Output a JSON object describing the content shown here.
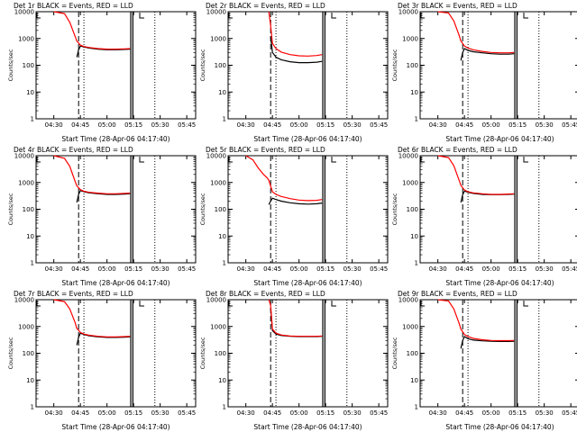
{
  "colors": {
    "events": "#000000",
    "lld": "#ff0000",
    "background": "#ffffff"
  },
  "chart_data": [
    {
      "type": "line",
      "title": "Det 1r BLACK = Events, RED = LLD",
      "xlabel": "Start Time (28-Apr-06 04:17:40)",
      "ylabel": "Counts/sec",
      "xticks": [
        "04:30",
        "04:45",
        "05:00",
        "05:15",
        "05:30",
        "05:45"
      ],
      "yticks": [
        "1",
        "10",
        "100",
        "1000",
        "10000"
      ],
      "yscale": "log",
      "ylim": [
        1,
        10000
      ],
      "series": [
        {
          "name": "Events",
          "x": [
            "04:43",
            "04:44",
            "04:45",
            "04:47",
            "04:50",
            "04:55",
            "05:00",
            "05:05",
            "05:10",
            "05:13"
          ],
          "values": [
            200,
            380,
            520,
            480,
            440,
            400,
            380,
            380,
            390,
            400
          ]
        },
        {
          "name": "LLD",
          "x": [
            "04:30",
            "04:36",
            "04:39",
            "04:42",
            "04:43",
            "04:45",
            "04:47",
            "04:50",
            "04:55",
            "05:00",
            "05:05",
            "05:10",
            "05:13"
          ],
          "values": [
            10000,
            8500,
            4000,
            1200,
            800,
            560,
            500,
            460,
            420,
            400,
            400,
            410,
            420
          ]
        }
      ]
    },
    {
      "type": "line",
      "title": "Det 2r BLACK = Events, RED = LLD",
      "xlabel": "Start Time (28-Apr-06 04:17:40)",
      "ylabel": "Counts/sec",
      "xticks": [
        "04:30",
        "04:45",
        "05:00",
        "05:15",
        "05:30",
        "05:45"
      ],
      "yticks": [
        "1",
        "10",
        "100",
        "1000",
        "10000"
      ],
      "yscale": "log",
      "ylim": [
        1,
        10000
      ],
      "series": [
        {
          "name": "Events",
          "x": [
            "04:44",
            "04:45",
            "04:47",
            "04:50",
            "04:55",
            "05:00",
            "05:05",
            "05:10",
            "05:13"
          ],
          "values": [
            1200,
            300,
            200,
            160,
            135,
            125,
            125,
            130,
            140
          ]
        },
        {
          "name": "LLD",
          "x": [
            "04:43",
            "04:44",
            "04:45",
            "04:47",
            "04:50",
            "04:55",
            "05:00",
            "05:05",
            "05:10",
            "05:13"
          ],
          "values": [
            10000,
            3000,
            650,
            420,
            310,
            250,
            225,
            220,
            230,
            250
          ]
        }
      ]
    },
    {
      "type": "line",
      "title": "Det 3r BLACK = Events, RED = LLD",
      "xlabel": "Start Time (28-Apr-06 04:17:40)",
      "ylabel": "Counts/sec",
      "xticks": [
        "04:30",
        "04:45",
        "05:00",
        "05:15",
        "05:30",
        "05:45"
      ],
      "yticks": [
        "1",
        "10",
        "100",
        "1000",
        "10000"
      ],
      "yscale": "log",
      "ylim": [
        1,
        10000
      ],
      "series": [
        {
          "name": "Events",
          "x": [
            "04:43",
            "04:44",
            "04:45",
            "04:47",
            "04:50",
            "04:55",
            "05:00",
            "05:05",
            "05:10",
            "05:13"
          ],
          "values": [
            150,
            300,
            420,
            360,
            320,
            290,
            270,
            260,
            260,
            270
          ]
        },
        {
          "name": "LLD",
          "x": [
            "04:30",
            "04:36",
            "04:39",
            "04:42",
            "04:43",
            "04:45",
            "04:47",
            "04:50",
            "04:55",
            "05:00",
            "05:05",
            "05:10",
            "05:13"
          ],
          "values": [
            10000,
            9000,
            4500,
            1300,
            800,
            520,
            440,
            380,
            330,
            300,
            290,
            290,
            300
          ]
        }
      ]
    },
    {
      "type": "line",
      "title": "Det 4r BLACK = Events, RED = LLD",
      "xlabel": "Start Time (28-Apr-06 04:17:40)",
      "ylabel": "Counts/sec",
      "xticks": [
        "04:30",
        "04:45",
        "05:00",
        "05:15",
        "05:30",
        "05:45"
      ],
      "yticks": [
        "1",
        "10",
        "100",
        "1000",
        "10000"
      ],
      "yscale": "log",
      "ylim": [
        1,
        10000
      ],
      "series": [
        {
          "name": "Events",
          "x": [
            "04:43",
            "04:44",
            "04:45",
            "04:47",
            "04:50",
            "04:55",
            "05:00",
            "05:05",
            "05:10",
            "05:13"
          ],
          "values": [
            180,
            360,
            500,
            450,
            410,
            380,
            360,
            360,
            370,
            380
          ]
        },
        {
          "name": "LLD",
          "x": [
            "04:30",
            "04:36",
            "04:39",
            "04:42",
            "04:43",
            "04:45",
            "04:47",
            "04:50",
            "04:55",
            "05:00",
            "05:05",
            "05:10",
            "05:13"
          ],
          "values": [
            10000,
            8000,
            4000,
            1100,
            750,
            540,
            470,
            430,
            400,
            380,
            380,
            390,
            400
          ]
        }
      ]
    },
    {
      "type": "line",
      "title": "Det 5r BLACK = Events, RED = LLD",
      "xlabel": "Start Time (28-Apr-06 04:17:40)",
      "ylabel": "Counts/sec",
      "xticks": [
        "04:30",
        "04:45",
        "05:00",
        "05:15",
        "05:30",
        "05:45"
      ],
      "yticks": [
        "1",
        "10",
        "100",
        "1000",
        "10000"
      ],
      "yscale": "log",
      "ylim": [
        1,
        10000
      ],
      "series": [
        {
          "name": "Events",
          "x": [
            "04:43",
            "04:44",
            "04:45",
            "04:47",
            "04:50",
            "04:55",
            "05:00",
            "05:05",
            "05:10",
            "05:13"
          ],
          "values": [
            150,
            200,
            260,
            230,
            200,
            175,
            160,
            155,
            160,
            170
          ]
        },
        {
          "name": "LLD",
          "x": [
            "04:30",
            "04:34",
            "04:37",
            "04:40",
            "04:42",
            "04:43",
            "04:45",
            "04:47",
            "04:50",
            "04:55",
            "05:00",
            "05:05",
            "05:10",
            "05:13"
          ],
          "values": [
            10000,
            7000,
            3500,
            2000,
            1500,
            1200,
            450,
            360,
            300,
            250,
            220,
            210,
            215,
            230
          ]
        }
      ]
    },
    {
      "type": "line",
      "title": "Det 6r BLACK = Events, RED = LLD",
      "xlabel": "Start Time (28-Apr-06 04:17:40)",
      "ylabel": "Counts/sec",
      "xticks": [
        "04:30",
        "04:45",
        "05:00",
        "05:15",
        "05:30",
        "05:45"
      ],
      "yticks": [
        "1",
        "10",
        "100",
        "1000",
        "10000"
      ],
      "yscale": "log",
      "ylim": [
        1,
        10000
      ],
      "series": [
        {
          "name": "Events",
          "x": [
            "04:43",
            "04:44",
            "04:45",
            "04:47",
            "04:50",
            "04:55",
            "05:00",
            "05:05",
            "05:10",
            "05:13"
          ],
          "values": [
            180,
            350,
            480,
            430,
            390,
            360,
            350,
            350,
            360,
            370
          ]
        },
        {
          "name": "LLD",
          "x": [
            "04:30",
            "04:36",
            "04:39",
            "04:42",
            "04:43",
            "04:45",
            "04:47",
            "04:50",
            "04:55",
            "05:00",
            "05:05",
            "05:10",
            "05:13"
          ],
          "values": [
            10000,
            8500,
            4200,
            1200,
            780,
            520,
            450,
            410,
            380,
            360,
            360,
            370,
            380
          ]
        }
      ]
    },
    {
      "type": "line",
      "title": "Det 7r BLACK = Events, RED = LLD",
      "xlabel": "Start Time (28-Apr-06 04:17:40)",
      "ylabel": "Counts/sec",
      "xticks": [
        "04:30",
        "04:45",
        "05:00",
        "05:15",
        "05:30",
        "05:45"
      ],
      "yticks": [
        "1",
        "10",
        "100",
        "1000",
        "10000"
      ],
      "yscale": "log",
      "ylim": [
        1,
        10000
      ],
      "series": [
        {
          "name": "Events",
          "x": [
            "04:43",
            "04:44",
            "04:45",
            "04:47",
            "04:50",
            "04:55",
            "05:00",
            "05:05",
            "05:10",
            "05:13"
          ],
          "values": [
            200,
            400,
            560,
            500,
            450,
            410,
            390,
            390,
            400,
            410
          ]
        },
        {
          "name": "LLD",
          "x": [
            "04:30",
            "04:36",
            "04:39",
            "04:42",
            "04:43",
            "04:45",
            "04:47",
            "04:50",
            "04:55",
            "05:00",
            "05:05",
            "05:10",
            "05:13"
          ],
          "values": [
            10000,
            8500,
            4500,
            1400,
            850,
            600,
            520,
            470,
            430,
            410,
            410,
            420,
            430
          ]
        }
      ]
    },
    {
      "type": "line",
      "title": "Det 8r BLACK = Events, RED = LLD",
      "xlabel": "Start Time (28-Apr-06 04:17:40)",
      "ylabel": "Counts/sec",
      "xticks": [
        "04:30",
        "04:45",
        "05:00",
        "05:15",
        "05:30",
        "05:45"
      ],
      "yticks": [
        "1",
        "10",
        "100",
        "1000",
        "10000"
      ],
      "yscale": "log",
      "ylim": [
        1,
        10000
      ],
      "series": [
        {
          "name": "Events",
          "x": [
            "04:44",
            "04:45",
            "04:47",
            "04:50",
            "04:55",
            "05:00",
            "05:05",
            "05:10",
            "05:13"
          ],
          "values": [
            5000,
            700,
            520,
            460,
            430,
            420,
            420,
            420,
            430
          ]
        },
        {
          "name": "LLD",
          "x": [
            "04:43",
            "04:44",
            "04:45",
            "04:47",
            "04:50",
            "04:55",
            "05:00",
            "05:05",
            "05:10",
            "05:13"
          ],
          "values": [
            10000,
            6000,
            800,
            560,
            480,
            440,
            430,
            430,
            430,
            440
          ]
        }
      ]
    },
    {
      "type": "line",
      "title": "Det 9r BLACK = Events, RED = LLD",
      "xlabel": "Start Time (28-Apr-06 04:17:40)",
      "ylabel": "Counts/sec",
      "xticks": [
        "04:30",
        "04:45",
        "05:00",
        "05:15",
        "05:30",
        "05:45"
      ],
      "yticks": [
        "1",
        "10",
        "100",
        "1000",
        "10000"
      ],
      "yscale": "log",
      "ylim": [
        1,
        10000
      ],
      "series": [
        {
          "name": "Events",
          "x": [
            "04:43",
            "04:44",
            "04:45",
            "04:47",
            "04:50",
            "04:55",
            "05:00",
            "05:05",
            "05:10",
            "05:13"
          ],
          "values": [
            150,
            300,
            420,
            350,
            310,
            290,
            280,
            275,
            275,
            280
          ]
        },
        {
          "name": "LLD",
          "x": [
            "04:30",
            "04:36",
            "04:39",
            "04:42",
            "04:43",
            "04:45",
            "04:47",
            "04:50",
            "04:55",
            "05:00",
            "05:05",
            "05:10",
            "05:13"
          ],
          "values": [
            10000,
            9000,
            4500,
            1300,
            800,
            500,
            420,
            360,
            320,
            300,
            295,
            295,
            300
          ]
        }
      ]
    }
  ]
}
